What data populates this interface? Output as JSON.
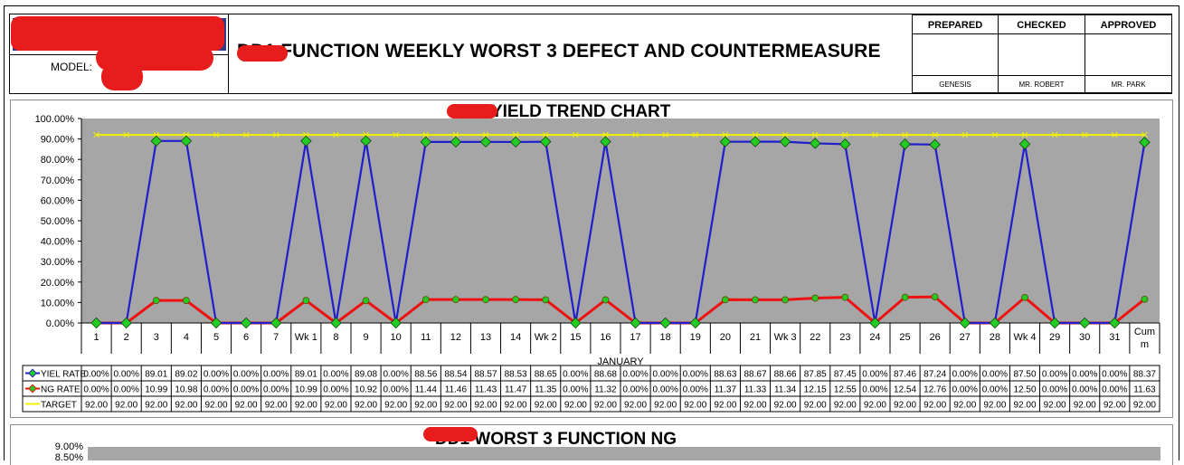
{
  "header": {
    "model_label": "MODEL:",
    "doc_title": "DD1 FUNCTION WEEKLY WORST 3 DEFECT AND COUNTERMEASURE",
    "signoff": [
      {
        "role": "PREPARED",
        "name": "GENESIS"
      },
      {
        "role": "CHECKED",
        "name": "MR. ROBERT"
      },
      {
        "role": "APPROVED",
        "name": "MR. PARK"
      }
    ]
  },
  "colors": {
    "plot_bg": "#a6a6a6",
    "yield": "#1f1fcc",
    "ng": "#ee1111",
    "target": "#f2f200",
    "marker": "#22cc22",
    "redact": "#e81c1c"
  },
  "chart_data": [
    {
      "type": "line",
      "title": "DD1 YIELD TREND CHART",
      "xlabel": "JANUARY",
      "ylabel": "",
      "ylim": [
        0,
        100
      ],
      "y_ticks": [
        "100.00%",
        "90.00%",
        "80.00%",
        "70.00%",
        "60.00%",
        "50.00%",
        "40.00%",
        "30.00%",
        "20.00%",
        "10.00%",
        "0.00%"
      ],
      "categories": [
        "1",
        "2",
        "3",
        "4",
        "5",
        "6",
        "7",
        "Wk 1",
        "8",
        "9",
        "10",
        "11",
        "12",
        "13",
        "14",
        "Wk 2",
        "15",
        "16",
        "17",
        "18",
        "19",
        "20",
        "21",
        "Wk 3",
        "22",
        "23",
        "24",
        "25",
        "26",
        "27",
        "28",
        "Wk 4",
        "29",
        "30",
        "31",
        "Cum m"
      ],
      "series": [
        {
          "name": "YIEL RATE",
          "values": [
            0,
            0,
            89.01,
            89.02,
            0,
            0,
            0,
            89.01,
            0,
            89.08,
            0,
            88.56,
            88.54,
            88.57,
            88.53,
            88.65,
            0,
            88.68,
            0,
            0,
            0,
            88.63,
            88.67,
            88.66,
            87.85,
            87.45,
            0,
            87.46,
            87.24,
            0,
            0,
            87.5,
            0,
            0,
            0,
            88.37
          ],
          "labels": [
            "0.00%",
            "0.00%",
            "89.01",
            "89.02",
            "0.00%",
            "0.00%",
            "0.00%",
            "89.01",
            "0.00%",
            "89.08",
            "0.00%",
            "88.56",
            "88.54",
            "88.57",
            "88.53",
            "88.65",
            "0.00%",
            "88.68",
            "0.00%",
            "0.00%",
            "0.00%",
            "88.63",
            "88.67",
            "88.66",
            "87.85",
            "87.45",
            "0.00%",
            "87.46",
            "87.24",
            "0.00%",
            "0.00%",
            "87.50",
            "0.00%",
            "0.00%",
            "0.00%",
            "88.37"
          ]
        },
        {
          "name": "NG RATE",
          "values": [
            0,
            0,
            10.99,
            10.98,
            0,
            0,
            0,
            10.99,
            0,
            10.92,
            0,
            11.44,
            11.46,
            11.43,
            11.47,
            11.35,
            0,
            11.32,
            0,
            0,
            0,
            11.37,
            11.33,
            11.34,
            12.15,
            12.55,
            0,
            12.54,
            12.76,
            0,
            0,
            12.5,
            0,
            0,
            0,
            11.63
          ],
          "labels": [
            "0.00%",
            "0.00%",
            "10.99",
            "10.98",
            "0.00%",
            "0.00%",
            "0.00%",
            "10.99",
            "0.00%",
            "10.92",
            "0.00%",
            "11.44",
            "11.46",
            "11.43",
            "11.47",
            "11.35",
            "0.00%",
            "11.32",
            "0.00%",
            "0.00%",
            "0.00%",
            "11.37",
            "11.33",
            "11.34",
            "12.15",
            "12.55",
            "0.00%",
            "12.54",
            "12.76",
            "0.00%",
            "0.00%",
            "12.50",
            "0.00%",
            "0.00%",
            "0.00%",
            "11.63"
          ]
        },
        {
          "name": "TARGET",
          "values": [
            92,
            92,
            92,
            92,
            92,
            92,
            92,
            92,
            92,
            92,
            92,
            92,
            92,
            92,
            92,
            92,
            92,
            92,
            92,
            92,
            92,
            92,
            92,
            92,
            92,
            92,
            92,
            92,
            92,
            92,
            92,
            92,
            92,
            92,
            92,
            92
          ],
          "labels": [
            "92.00",
            "92.00",
            "92.00",
            "92.00",
            "92.00",
            "92.00",
            "92.00",
            "92.00",
            "92.00",
            "92.00",
            "92.00",
            "92.00",
            "92.00",
            "92.00",
            "92.00",
            "92.00",
            "92.00",
            "92.00",
            "92.00",
            "92.00",
            "92.00",
            "92.00",
            "92.00",
            "92.00",
            "92.00",
            "92.00",
            "92.00",
            "92.00",
            "92.00",
            "92.00",
            "92.00",
            "92.00",
            "92.00",
            "92.00",
            "92.00",
            "92.00"
          ]
        }
      ]
    },
    {
      "type": "bar",
      "title": "DD1 WORST 3 FUNCTION NG",
      "y_ticks": [
        "9.00%",
        "8.50%"
      ]
    }
  ]
}
